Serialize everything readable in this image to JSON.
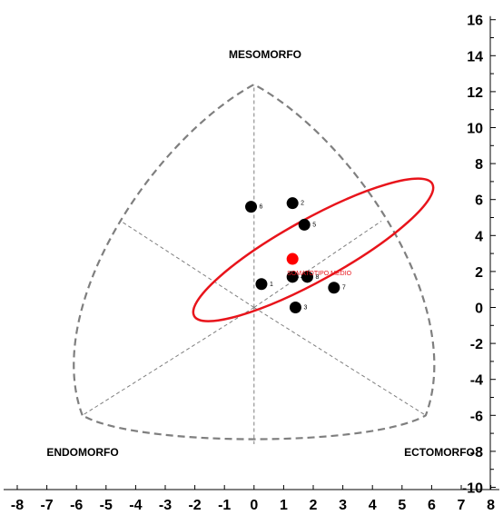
{
  "chart_data": {
    "type": "scatter",
    "title": "",
    "xlabel": "",
    "ylabel": "",
    "xlim": [
      -8,
      8
    ],
    "ylim": [
      -10,
      16
    ],
    "x_ticks": [
      -8,
      -7,
      -6,
      -5,
      -4,
      -3,
      -2,
      -1,
      0,
      1,
      2,
      3,
      4,
      5,
      6,
      7,
      8
    ],
    "y_ticks": [
      -10,
      -8,
      -6,
      -4,
      -2,
      0,
      2,
      4,
      6,
      8,
      10,
      12,
      14,
      16
    ],
    "grid": false,
    "legend": "none",
    "regions": {
      "mesomorfo": "MESOMORFO",
      "endomorfo": "ENDOMORFO",
      "ectomorfo": "ECTOMORFO"
    },
    "somatochart_frame": {
      "top": [
        0,
        12.4
      ],
      "left": [
        -5.8,
        -6
      ],
      "right": [
        5.8,
        -6
      ],
      "center": [
        0,
        0
      ]
    },
    "points": [
      {
        "label": "1",
        "x": 0.25,
        "y": 1.3
      },
      {
        "label": "2",
        "x": 1.3,
        "y": 5.8
      },
      {
        "label": "3",
        "x": 1.4,
        "y": 0.0
      },
      {
        "label": "4",
        "x": 1.3,
        "y": 1.7
      },
      {
        "label": "5",
        "x": 1.7,
        "y": 4.6
      },
      {
        "label": "6",
        "x": -0.1,
        "y": 5.6
      },
      {
        "label": "7",
        "x": 2.7,
        "y": 1.1
      },
      {
        "label": "8",
        "x": 1.8,
        "y": 1.7
      }
    ],
    "mean_point": {
      "label": "SOMATOTIPO MEDIO",
      "x": 1.3,
      "y": 2.7
    },
    "ellipse": {
      "cx": 2.0,
      "cy": 3.2,
      "rx": 4.6,
      "ry": 1.1,
      "angle_deg": 29
    },
    "colors": {
      "points": "#000000",
      "mean": "#ff0000",
      "ellipse": "#e8141b",
      "frame": "#7f7f7f",
      "axes": "#000000"
    }
  }
}
